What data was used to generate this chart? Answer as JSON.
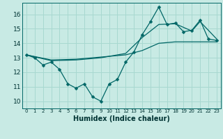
{
  "xlabel": "Humidex (Indice chaleur)",
  "bg_color": "#c8eae4",
  "line_color": "#006666",
  "grid_color": "#a8d8d0",
  "xlim": [
    -0.5,
    23.5
  ],
  "ylim": [
    9.5,
    16.8
  ],
  "yticks": [
    10,
    11,
    12,
    13,
    14,
    15,
    16
  ],
  "xticks": [
    0,
    1,
    2,
    3,
    4,
    5,
    6,
    7,
    8,
    9,
    10,
    11,
    12,
    13,
    14,
    15,
    16,
    17,
    18,
    19,
    20,
    21,
    22,
    23
  ],
  "line1_x": [
    0,
    1,
    2,
    3,
    4,
    5,
    6,
    7,
    8,
    9,
    10,
    11,
    12,
    13,
    14,
    15,
    16,
    17,
    18,
    19,
    20,
    21,
    22,
    23
  ],
  "line1_y": [
    13.2,
    13.0,
    12.5,
    12.7,
    12.2,
    11.2,
    10.9,
    11.2,
    10.3,
    10.0,
    11.2,
    11.5,
    12.7,
    13.4,
    14.6,
    15.5,
    16.5,
    15.3,
    15.4,
    14.8,
    14.9,
    15.6,
    14.3,
    14.2
  ],
  "line2_x": [
    0,
    3,
    6,
    9,
    12,
    14,
    16,
    18,
    20,
    21,
    23
  ],
  "line2_y": [
    13.2,
    12.8,
    12.85,
    13.0,
    13.3,
    14.4,
    15.3,
    15.35,
    14.85,
    15.5,
    14.3
  ],
  "line3_x": [
    0,
    3,
    6,
    9,
    12,
    14,
    16,
    18,
    20,
    23
  ],
  "line3_y": [
    13.2,
    12.85,
    12.9,
    13.05,
    13.2,
    13.5,
    14.0,
    14.1,
    14.1,
    14.1
  ]
}
